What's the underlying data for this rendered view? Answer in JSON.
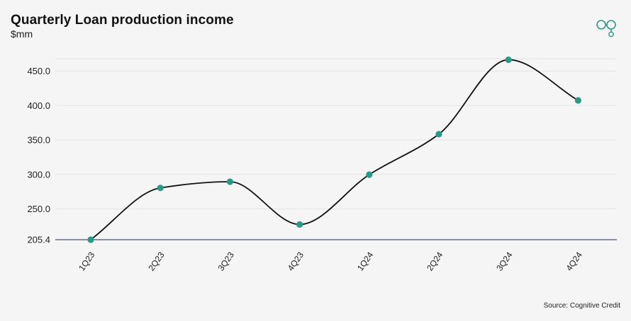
{
  "chart_data": {
    "type": "line",
    "title": "Quarterly Loan production income",
    "subtitle": "$mm",
    "source": "Source: Cognitive Credit",
    "categories": [
      "1Q23",
      "2Q23",
      "3Q23",
      "4Q23",
      "1Q24",
      "2Q24",
      "3Q24",
      "4Q24"
    ],
    "series": [
      {
        "values": [
          205.4,
          280.5,
          289.5,
          227.5,
          299.8,
          358.5,
          466.5,
          407.5
        ]
      }
    ],
    "yticks": [
      205.4,
      250.0,
      300.0,
      350.0,
      400.0,
      450.0
    ],
    "ytick_labels": [
      "205.4",
      "250.0",
      "300.0",
      "350.0",
      "400.0",
      "450.0"
    ],
    "ylim": [
      205.4,
      468
    ],
    "grid": true,
    "line_color": "#111111",
    "marker_color": "#2a9a87",
    "baseline_color": "#1c2a4a",
    "logo_icon": "cognitive-credit-logo"
  }
}
